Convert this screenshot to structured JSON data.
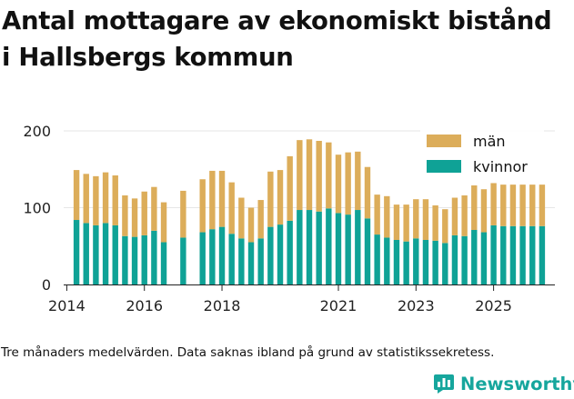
{
  "header": {
    "title_line1": "Antal mottagare av ekonomiskt bistånd",
    "title_line2": "i Hallsbergs kommun"
  },
  "footer": {
    "note": "Tre månaders medelvärden. Data saknas ibland på grund av statistikssekretess.",
    "brand": "Newsworthy"
  },
  "colors": {
    "men": "#dcad5a",
    "women": "#0fa296",
    "grid": "#e6e6e6"
  },
  "chart_data": {
    "type": "bar",
    "stacked": true,
    "title": "Antal mottagare av ekonomiskt bistånd i Hallsbergs kommun",
    "xlabel": "",
    "ylabel": "",
    "xlim": [
      2013.92,
      2026.58
    ],
    "ylim": [
      0,
      200
    ],
    "y_ticks": [
      0,
      100,
      200
    ],
    "x_ticks": [
      2014,
      2016,
      2018,
      2021,
      2023,
      2025
    ],
    "legend": {
      "position": "top-right",
      "entries": [
        "män",
        "kvinnor"
      ]
    },
    "x": [
      2014.25,
      2014.5,
      2014.75,
      2015.0,
      2015.25,
      2015.5,
      2015.75,
      2016.0,
      2016.25,
      2016.5,
      2017.0,
      2017.5,
      2017.75,
      2018.0,
      2018.25,
      2018.5,
      2018.75,
      2019.0,
      2019.25,
      2019.5,
      2019.75,
      2020.0,
      2020.25,
      2020.5,
      2020.75,
      2021.0,
      2021.25,
      2021.5,
      2021.75,
      2022.0,
      2022.25,
      2022.5,
      2022.75,
      2023.0,
      2023.25,
      2023.5,
      2023.75,
      2024.0,
      2024.25,
      2024.5,
      2024.75,
      2025.0,
      2025.25,
      2025.5,
      2025.75,
      2026.0,
      2026.25
    ],
    "series": [
      {
        "name": "kvinnor",
        "values": [
          84,
          80,
          77,
          80,
          77,
          63,
          62,
          64,
          70,
          55,
          61,
          68,
          72,
          75,
          66,
          60,
          55,
          60,
          75,
          78,
          83,
          97,
          97,
          95,
          99,
          93,
          91,
          97,
          86,
          65,
          61,
          58,
          56,
          60,
          58,
          57,
          54,
          64,
          63,
          71,
          68,
          77,
          76,
          76,
          76,
          76,
          76
        ]
      },
      {
        "name": "män",
        "values": [
          65,
          64,
          64,
          66,
          65,
          53,
          50,
          57,
          57,
          52,
          61,
          69,
          76,
          73,
          67,
          53,
          45,
          50,
          72,
          71,
          84,
          91,
          92,
          92,
          86,
          76,
          81,
          76,
          67,
          52,
          54,
          46,
          48,
          51,
          53,
          46,
          44,
          49,
          53,
          58,
          56,
          55,
          54,
          54,
          54,
          54,
          54
        ]
      }
    ]
  }
}
